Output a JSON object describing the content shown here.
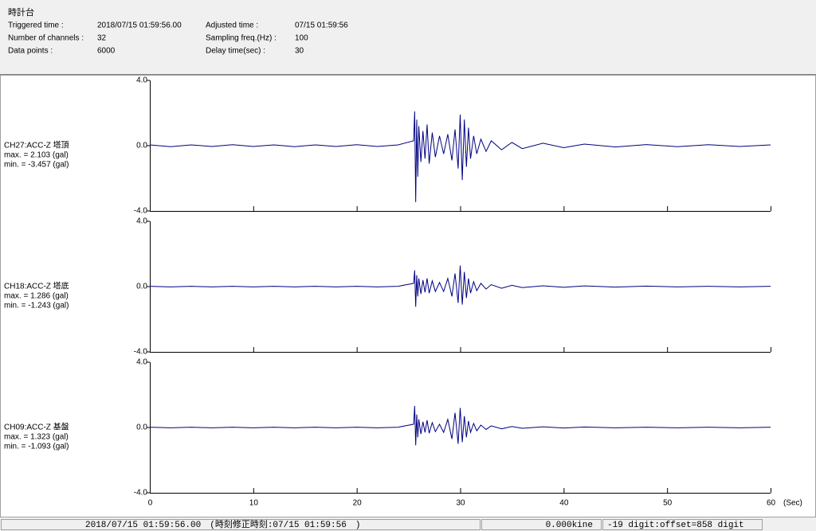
{
  "header": {
    "title": "時計台",
    "fields": [
      {
        "label": "Triggered time :",
        "value": "2018/07/15 01:59:56.00"
      },
      {
        "label": "Adjusted time :",
        "value": "07/15 01:59:56"
      },
      {
        "label": "Number of channels :",
        "value": "32"
      },
      {
        "label": "Sampling freq.(Hz) :",
        "value": "100"
      },
      {
        "label": "Data points :",
        "value": "6000"
      },
      {
        "label": "Delay time(sec) :",
        "value": "30"
      }
    ]
  },
  "chart_data": [
    {
      "type": "line",
      "title": "CH27:ACC-Z 塔頂",
      "annotations": [
        "max. = 2.103 (gal)",
        "min. = -3.457 (gal)"
      ],
      "x": [
        0,
        2,
        4,
        6,
        8,
        10,
        12,
        14,
        16,
        18,
        20,
        22,
        24,
        25.5,
        25.6,
        25.7,
        25.8,
        25.9,
        26.0,
        26.2,
        26.4,
        26.6,
        26.8,
        27.0,
        27.3,
        27.6,
        28.0,
        28.4,
        28.8,
        29.2,
        29.5,
        29.8,
        30.0,
        30.2,
        30.4,
        30.6,
        30.8,
        31.0,
        31.3,
        31.6,
        32.0,
        32.5,
        33,
        34,
        35,
        36,
        38,
        40,
        42,
        45,
        48,
        51,
        54,
        57,
        60
      ],
      "series": [
        {
          "color": "#000080",
          "values": [
            0.05,
            -0.06,
            0.05,
            -0.05,
            0.06,
            -0.05,
            0.05,
            -0.06,
            0.05,
            -0.05,
            0.06,
            -0.05,
            0.05,
            0.3,
            2.1,
            -3.46,
            1.6,
            -1.9,
            1.2,
            -1.0,
            0.9,
            -0.8,
            1.3,
            -1.1,
            0.8,
            -0.7,
            0.6,
            -0.5,
            0.7,
            -0.9,
            1.0,
            -1.4,
            1.9,
            -2.1,
            1.6,
            -1.3,
            1.1,
            -0.8,
            0.6,
            -0.5,
            0.4,
            -0.35,
            0.3,
            -0.25,
            0.2,
            -0.18,
            0.15,
            -0.12,
            0.1,
            -0.08,
            0.07,
            -0.06,
            0.06,
            -0.05,
            0.05
          ]
        }
      ],
      "xlim": [
        0,
        60
      ],
      "ylim": [
        -4,
        4
      ],
      "yticks": [
        {
          "value": 4,
          "label": "4.0"
        },
        {
          "value": 0,
          "label": "0.0"
        },
        {
          "value": -4,
          "label": "-4.0"
        }
      ]
    },
    {
      "type": "line",
      "title": "CH18:ACC-Z 塔底",
      "annotations": [
        "max. = 1.286 (gal)",
        "min. = -1.243 (gal)"
      ],
      "x": [
        0,
        2,
        4,
        6,
        8,
        10,
        12,
        14,
        16,
        18,
        20,
        22,
        24,
        25.5,
        25.6,
        25.7,
        25.8,
        25.9,
        26.0,
        26.2,
        26.4,
        26.6,
        26.8,
        27.0,
        27.3,
        27.6,
        28.0,
        28.4,
        28.8,
        29.2,
        29.5,
        29.8,
        30.0,
        30.2,
        30.4,
        30.6,
        30.8,
        31.0,
        31.3,
        31.6,
        32.0,
        32.5,
        33,
        34,
        35,
        36,
        38,
        40,
        42,
        45,
        48,
        51,
        54,
        57,
        60
      ],
      "series": [
        {
          "color": "#000080",
          "values": [
            0.02,
            -0.02,
            0.02,
            -0.02,
            0.02,
            -0.02,
            0.02,
            -0.02,
            0.02,
            -0.02,
            0.02,
            -0.02,
            0.02,
            0.2,
            1.0,
            -1.24,
            0.7,
            -0.6,
            0.5,
            -0.45,
            0.4,
            -0.35,
            0.5,
            -0.4,
            0.35,
            -0.3,
            0.25,
            -0.3,
            0.5,
            -0.6,
            0.8,
            -1.0,
            1.29,
            -1.1,
            0.9,
            -0.7,
            0.5,
            -0.4,
            0.3,
            -0.25,
            0.2,
            -0.15,
            0.12,
            -0.1,
            0.08,
            -0.06,
            0.05,
            -0.04,
            0.04,
            -0.03,
            0.03,
            -0.02,
            0.02,
            -0.02,
            0.02
          ]
        }
      ],
      "xlim": [
        0,
        60
      ],
      "ylim": [
        -4,
        4
      ],
      "yticks": [
        {
          "value": 4,
          "label": "4.0"
        },
        {
          "value": 0,
          "label": "0.0"
        },
        {
          "value": -4,
          "label": "-4.0"
        }
      ]
    },
    {
      "type": "line",
      "title": "CH09:ACC-Z 基盤",
      "annotations": [
        "max. = 1.323 (gal)",
        "min. = -1.093 (gal)"
      ],
      "x": [
        0,
        2,
        4,
        6,
        8,
        10,
        12,
        14,
        16,
        18,
        20,
        22,
        24,
        25.5,
        25.6,
        25.7,
        25.8,
        25.9,
        26.0,
        26.2,
        26.4,
        26.6,
        26.8,
        27.0,
        27.3,
        27.6,
        28.0,
        28.4,
        28.8,
        29.2,
        29.5,
        29.8,
        30.0,
        30.2,
        30.4,
        30.6,
        30.8,
        31.0,
        31.3,
        31.6,
        32.0,
        32.5,
        33,
        34,
        35,
        36,
        38,
        40,
        42,
        45,
        48,
        51,
        54,
        57,
        60
      ],
      "series": [
        {
          "color": "#000080",
          "values": [
            0.02,
            -0.02,
            0.02,
            -0.02,
            0.02,
            -0.02,
            0.02,
            -0.02,
            0.02,
            -0.02,
            0.02,
            -0.02,
            0.02,
            0.2,
            1.32,
            -1.09,
            0.8,
            -0.6,
            0.5,
            -0.4,
            0.35,
            -0.3,
            0.45,
            -0.35,
            0.3,
            -0.25,
            0.2,
            -0.3,
            0.5,
            -0.7,
            0.9,
            -1.0,
            1.2,
            -0.9,
            0.7,
            -0.6,
            0.4,
            -0.3,
            0.25,
            -0.2,
            0.15,
            -0.12,
            0.1,
            -0.08,
            0.06,
            -0.05,
            0.04,
            -0.03,
            0.03,
            -0.02,
            0.02,
            -0.02,
            0.02,
            -0.02,
            0.02
          ]
        }
      ],
      "xlim": [
        0,
        60
      ],
      "ylim": [
        -4,
        4
      ],
      "yticks": [
        {
          "value": 4,
          "label": "4.0"
        },
        {
          "value": 0,
          "label": "0.0"
        },
        {
          "value": -4,
          "label": "-4.0"
        }
      ],
      "xticks": [
        0,
        10,
        20,
        30,
        40,
        50,
        60
      ],
      "xlabel": "(Sec)"
    }
  ],
  "status": [
    "2018/07/15 01:59:56.00　(時刻修正時刻:07/15 01:59:56　)",
    "0.000kine",
    "-19 digit:offset=858 digit"
  ]
}
